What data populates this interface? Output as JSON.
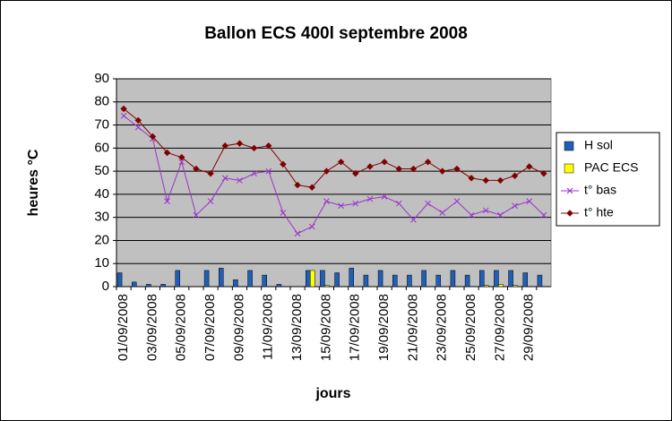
{
  "chart_data": {
    "type": "bar",
    "title": "Ballon ECS 400l   septembre 2008",
    "y_label": "heures    °C",
    "x_label": "jours",
    "categories": [
      "01/09/2008",
      null,
      "03/09/2008",
      null,
      "05/09/2008",
      null,
      "07/09/2008",
      null,
      "09/09/2008",
      null,
      "11/09/2008",
      null,
      "13/09/2008",
      null,
      "15/09/2008",
      null,
      "17/09/2008",
      null,
      "19/09/2008",
      null,
      "21/09/2008",
      null,
      "23/09/2008",
      null,
      "25/09/2008",
      null,
      "27/09/2008",
      null,
      "29/09/2008",
      null
    ],
    "series": [
      {
        "name": "H sol",
        "type": "bar",
        "color": "#1f5fb8",
        "values": [
          6,
          2,
          1,
          1,
          7,
          0,
          7,
          8,
          3,
          7,
          5,
          1,
          0,
          7,
          7,
          6,
          8,
          5,
          7,
          5,
          5,
          7,
          5,
          7,
          5,
          7,
          7,
          7,
          6,
          5
        ]
      },
      {
        "name": "PAC ECS",
        "type": "bar",
        "color": "#ffff00",
        "values": [
          0,
          0,
          0,
          0,
          0,
          0,
          0,
          0,
          0,
          0,
          0,
          0,
          0,
          7,
          0.5,
          0,
          0,
          0,
          0,
          0,
          0,
          0,
          0,
          0,
          0,
          0.5,
          1,
          0.5,
          0,
          0
        ]
      },
      {
        "name": "t° bas",
        "type": "line",
        "marker": "x",
        "color": "#9933cc",
        "values": [
          74,
          69,
          64,
          37,
          54,
          31,
          37,
          47,
          46,
          49,
          50,
          32,
          23,
          26,
          37,
          35,
          36,
          38,
          39,
          36,
          29,
          36,
          32,
          37,
          31,
          33,
          31,
          35,
          37,
          31
        ]
      },
      {
        "name": "t° hte",
        "type": "line",
        "marker": "diamond",
        "color": "#800000",
        "values": [
          77,
          72,
          65,
          58,
          56,
          51,
          49,
          61,
          62,
          60,
          61,
          53,
          44,
          43,
          50,
          54,
          49,
          52,
          54,
          51,
          51,
          54,
          50,
          51,
          47,
          46,
          46,
          48,
          52,
          49
        ]
      }
    ],
    "ylim": [
      0,
      90
    ],
    "yticks": [
      0,
      10,
      20,
      30,
      40,
      50,
      60,
      70,
      80,
      90
    ],
    "grid": true,
    "legend": "right"
  }
}
